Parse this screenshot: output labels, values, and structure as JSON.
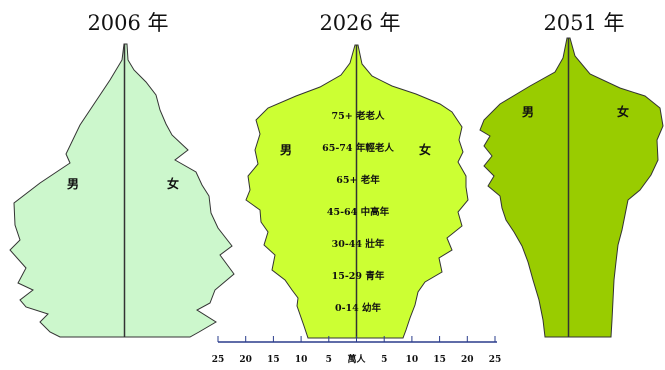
{
  "chart_data": [
    {
      "type": "area",
      "title": "2006 年",
      "color": "#ccf7cc",
      "labels": {
        "male": "男",
        "female": "女"
      },
      "age_groups": [],
      "x_axis": null
    },
    {
      "type": "area",
      "title": "2026 年",
      "color": "#ccff33",
      "labels": {
        "male": "男",
        "female": "女"
      },
      "age_groups": [
        "75+ 老老人",
        "65-74 年輕老人",
        "65+ 老年",
        "45-64 中高年",
        "30-44 壯年",
        "15-29 青年",
        "0-14 幼年"
      ],
      "x_axis": {
        "ticks": [
          "25",
          "20",
          "15",
          "10",
          "5",
          "萬人",
          "5",
          "10",
          "15",
          "20",
          "25"
        ],
        "range": [
          -25,
          25
        ]
      }
    },
    {
      "type": "area",
      "title": "2051 年",
      "color": "#99cc00",
      "labels": {
        "male": "男",
        "female": "女"
      },
      "age_groups": [],
      "x_axis": null
    }
  ]
}
